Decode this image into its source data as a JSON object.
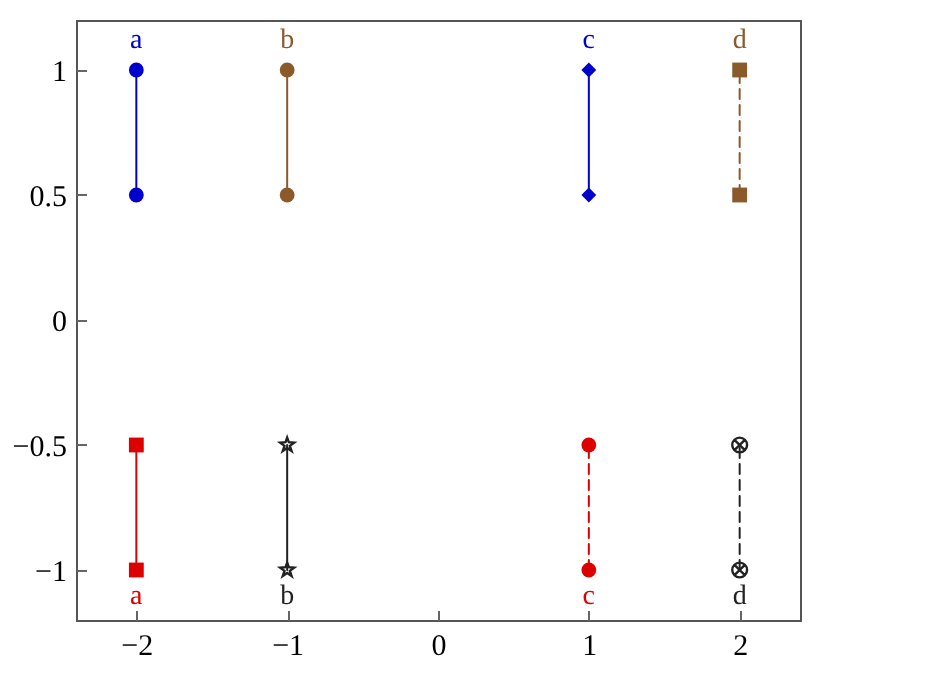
{
  "chart_data": {
    "type": "line",
    "xlim": [
      -2.4,
      2.4
    ],
    "ylim": [
      -1.2,
      1.2
    ],
    "xticks": [
      {
        "value": -2,
        "label": "−2"
      },
      {
        "value": -1,
        "label": "−1"
      },
      0,
      1,
      2
    ],
    "yticks": [
      {
        "value": -1,
        "label": "−1"
      },
      {
        "value": -0.5,
        "label": "−0.5"
      },
      0,
      0.5,
      1
    ],
    "grid": false,
    "series": [
      {
        "x": [
          -2,
          -2
        ],
        "values": [
          0.5,
          1
        ],
        "color": "#0000cc",
        "marker": "circle",
        "line_style": "solid"
      },
      {
        "x": [
          -1,
          -1
        ],
        "values": [
          0.5,
          1
        ],
        "color": "#8b5a2b",
        "marker": "circle",
        "line_style": "solid"
      },
      {
        "x": [
          1,
          1
        ],
        "values": [
          0.5,
          1
        ],
        "color": "#0000cc",
        "marker": "diamond",
        "line_style": "solid"
      },
      {
        "x": [
          2,
          2
        ],
        "values": [
          0.5,
          1
        ],
        "color": "#8b5a2b",
        "marker": "square",
        "line_style": "dashed"
      },
      {
        "x": [
          -2,
          -2
        ],
        "values": [
          -1,
          -0.5
        ],
        "color": "#dd0000",
        "marker": "square",
        "line_style": "solid"
      },
      {
        "x": [
          -1,
          -1
        ],
        "values": [
          -1,
          -0.5
        ],
        "color": "#222222",
        "marker": "star",
        "line_style": "solid"
      },
      {
        "x": [
          1,
          1
        ],
        "values": [
          -1,
          -0.5
        ],
        "color": "#dd0000",
        "marker": "circle",
        "line_style": "dashed"
      },
      {
        "x": [
          2,
          2
        ],
        "values": [
          -1,
          -0.5
        ],
        "color": "#222222",
        "marker": "cross",
        "line_style": "dashed"
      }
    ],
    "annotations": [
      {
        "text": "a",
        "x": -2,
        "y": 1
      },
      {
        "text": "b",
        "x": -1,
        "y": 1
      },
      {
        "text": "c",
        "x": 1,
        "y": 1
      },
      {
        "text": "d",
        "x": 2,
        "y": 1
      },
      {
        "text": "a",
        "x": -2,
        "y": -1
      },
      {
        "text": "b",
        "x": -1,
        "y": -1
      },
      {
        "text": "c",
        "x": 1,
        "y": -1
      },
      {
        "text": "d",
        "x": 2,
        "y": -1
      }
    ]
  }
}
